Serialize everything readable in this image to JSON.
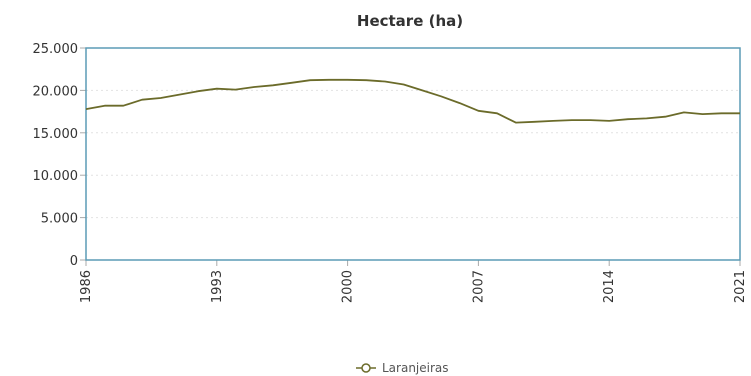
{
  "chart_data": {
    "type": "line",
    "title": "Hectare (ha)",
    "xlabel": "",
    "ylabel": "",
    "xlim": [
      1986,
      2021
    ],
    "ylim": [
      0,
      25000
    ],
    "grid": true,
    "legend_position": "bottom-center",
    "x_ticks": [
      1986,
      1993,
      2000,
      2007,
      2014,
      2021
    ],
    "x_tick_labels": [
      "1986",
      "1993",
      "2000",
      "2007",
      "2014",
      "2021"
    ],
    "y_ticks": [
      0,
      5000,
      10000,
      15000,
      20000,
      25000
    ],
    "y_tick_labels": [
      "0",
      "5.000",
      "10.000",
      "15.000",
      "20.000",
      "25.000"
    ],
    "series": [
      {
        "name": "Laranjeiras",
        "color": "#6b6b2a",
        "x": [
          1986,
          1987,
          1988,
          1989,
          1990,
          1991,
          1992,
          1993,
          1994,
          1995,
          1996,
          1997,
          1998,
          1999,
          2000,
          2001,
          2002,
          2003,
          2004,
          2005,
          2006,
          2007,
          2008,
          2009,
          2010,
          2011,
          2012,
          2013,
          2014,
          2015,
          2016,
          2017,
          2018,
          2019,
          2020,
          2021
        ],
        "values": [
          17800,
          18200,
          18200,
          18900,
          19100,
          19500,
          19900,
          20200,
          20100,
          20400,
          20600,
          20900,
          21200,
          21250,
          21250,
          21200,
          21050,
          20700,
          20000,
          19300,
          18500,
          17600,
          17300,
          16200,
          16300,
          16400,
          16500,
          16500,
          16400,
          16600,
          16700,
          16900,
          17400,
          17200,
          17300,
          17300
        ]
      }
    ]
  },
  "colors": {
    "plot_border": "#5b9bb5",
    "grid": "#e2e2e2",
    "axis": "#aaaaaa"
  }
}
